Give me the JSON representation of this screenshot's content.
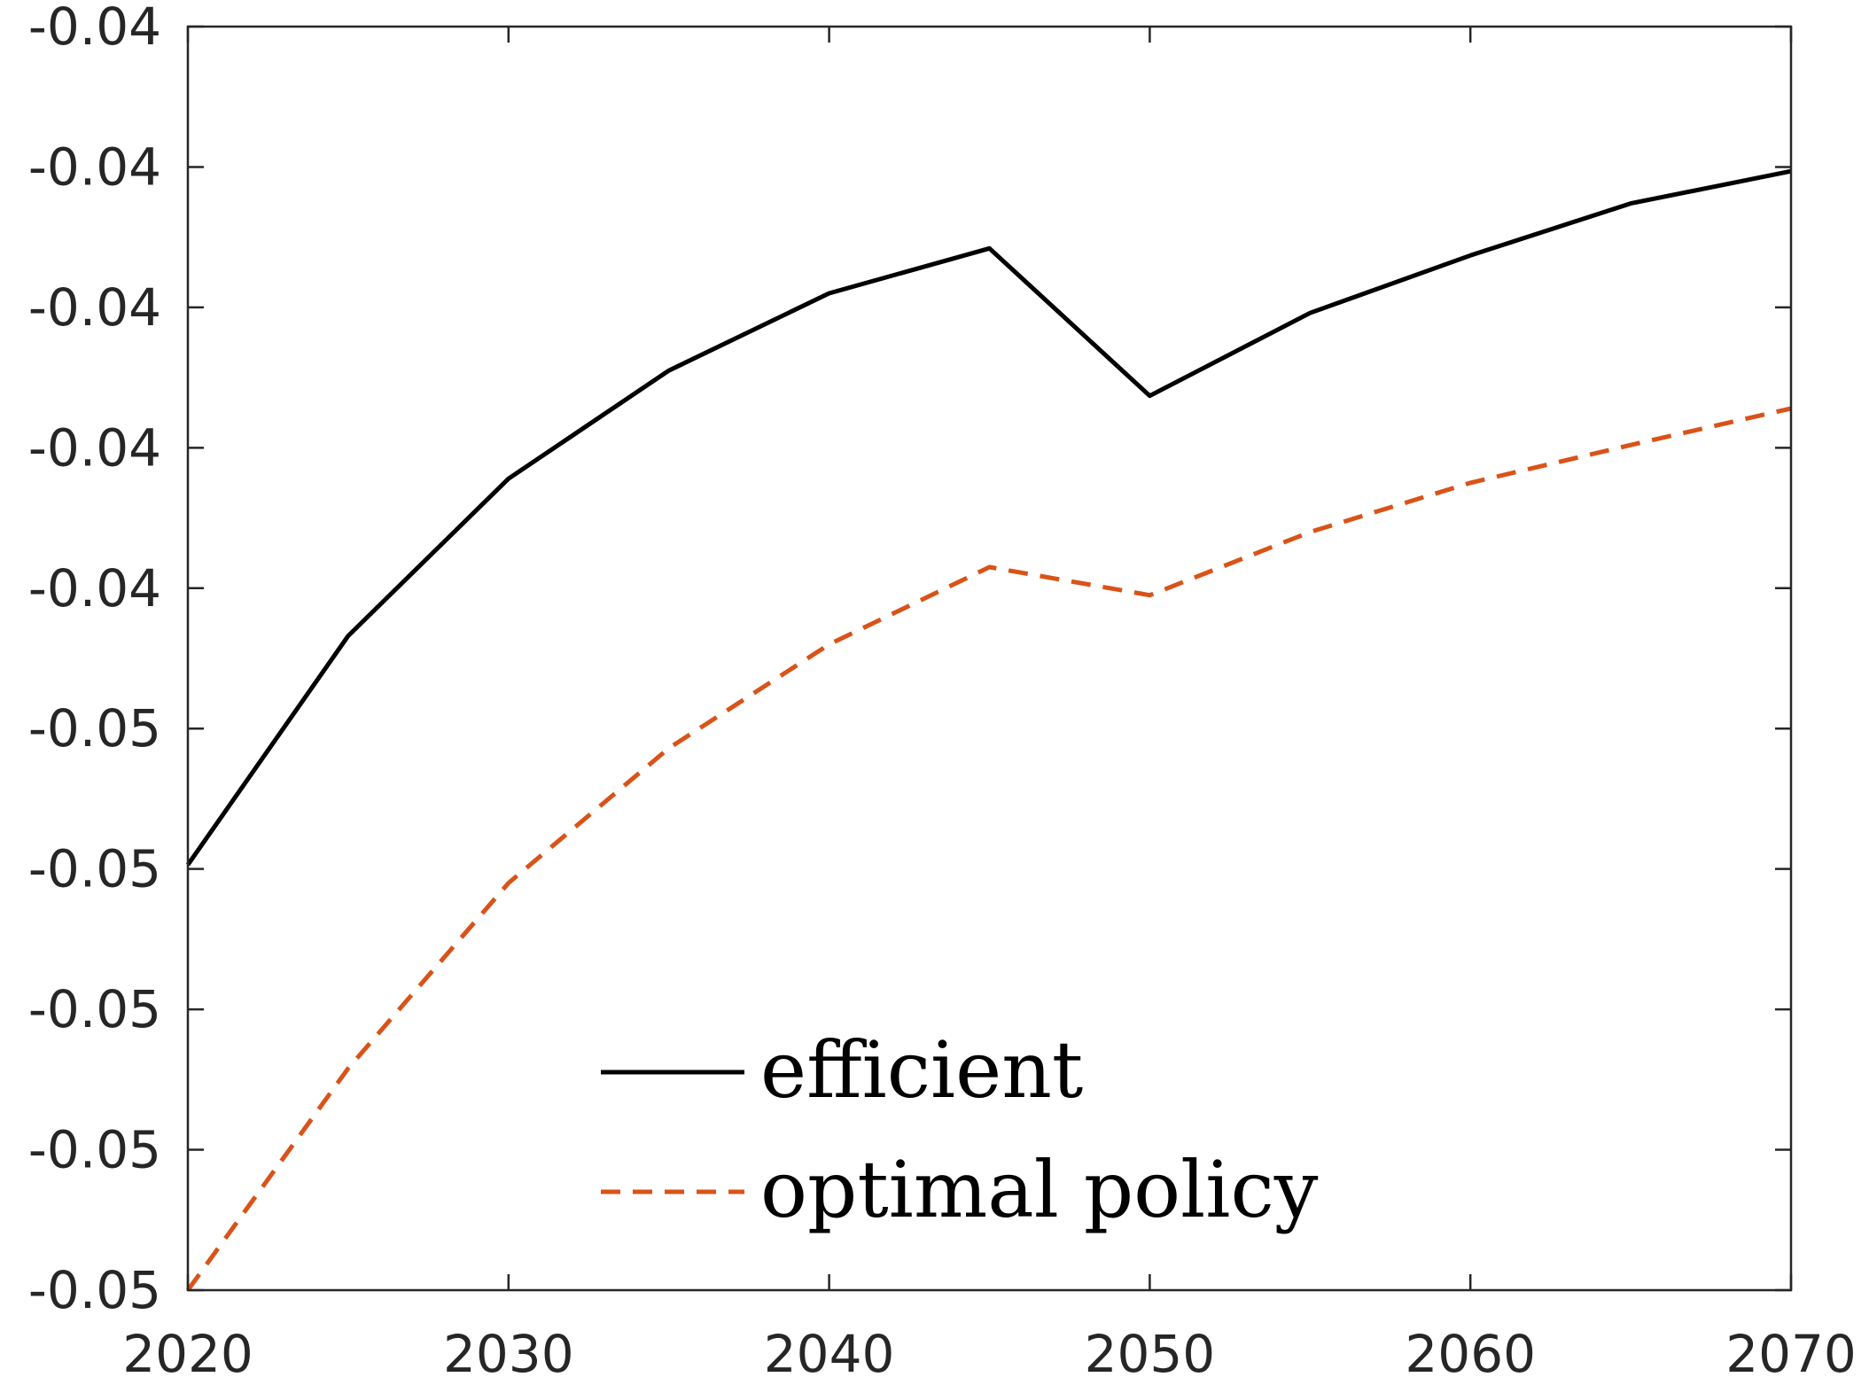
{
  "chart_data": {
    "type": "line",
    "title": "",
    "xlabel": "",
    "ylabel": "",
    "x": [
      2020,
      2025,
      2030,
      2035,
      2040,
      2045,
      2050,
      2055,
      2060,
      2065,
      2070
    ],
    "series": [
      {
        "name": "efficient",
        "color": "#000000",
        "style": "solid",
        "values": [
          -0.04597,
          -0.04434,
          -0.04322,
          -0.04245,
          -0.0419,
          -0.04158,
          -0.04263,
          -0.04204,
          -0.04163,
          -0.04126,
          -0.04103
        ]
      },
      {
        "name": "optimal policy",
        "color": "#D95319",
        "style": "dashed",
        "values": [
          -0.049,
          -0.04742,
          -0.0461,
          -0.04514,
          -0.0444,
          -0.04385,
          -0.04405,
          -0.0436,
          -0.04325,
          -0.04298,
          -0.04272
        ]
      }
    ],
    "xlim": [
      2020,
      2070
    ],
    "ylim": [
      -0.049,
      -0.04
    ],
    "xticks": [
      2020,
      2030,
      2040,
      2050,
      2060,
      2070
    ],
    "xtick_labels": [
      "2020",
      "2030",
      "2040",
      "2050",
      "2060",
      "2070"
    ],
    "yticks": [
      -0.049,
      -0.048,
      -0.047,
      -0.046,
      -0.045,
      -0.044,
      -0.043,
      -0.042,
      -0.041,
      -0.04
    ],
    "ytick_labels": [
      "-0.05",
      "-0.05",
      "-0.05",
      "-0.05",
      "-0.05",
      "-0.04",
      "-0.04",
      "-0.04",
      "-0.04",
      "-0.04"
    ],
    "grid": false,
    "legend_position": "bottom-center"
  }
}
